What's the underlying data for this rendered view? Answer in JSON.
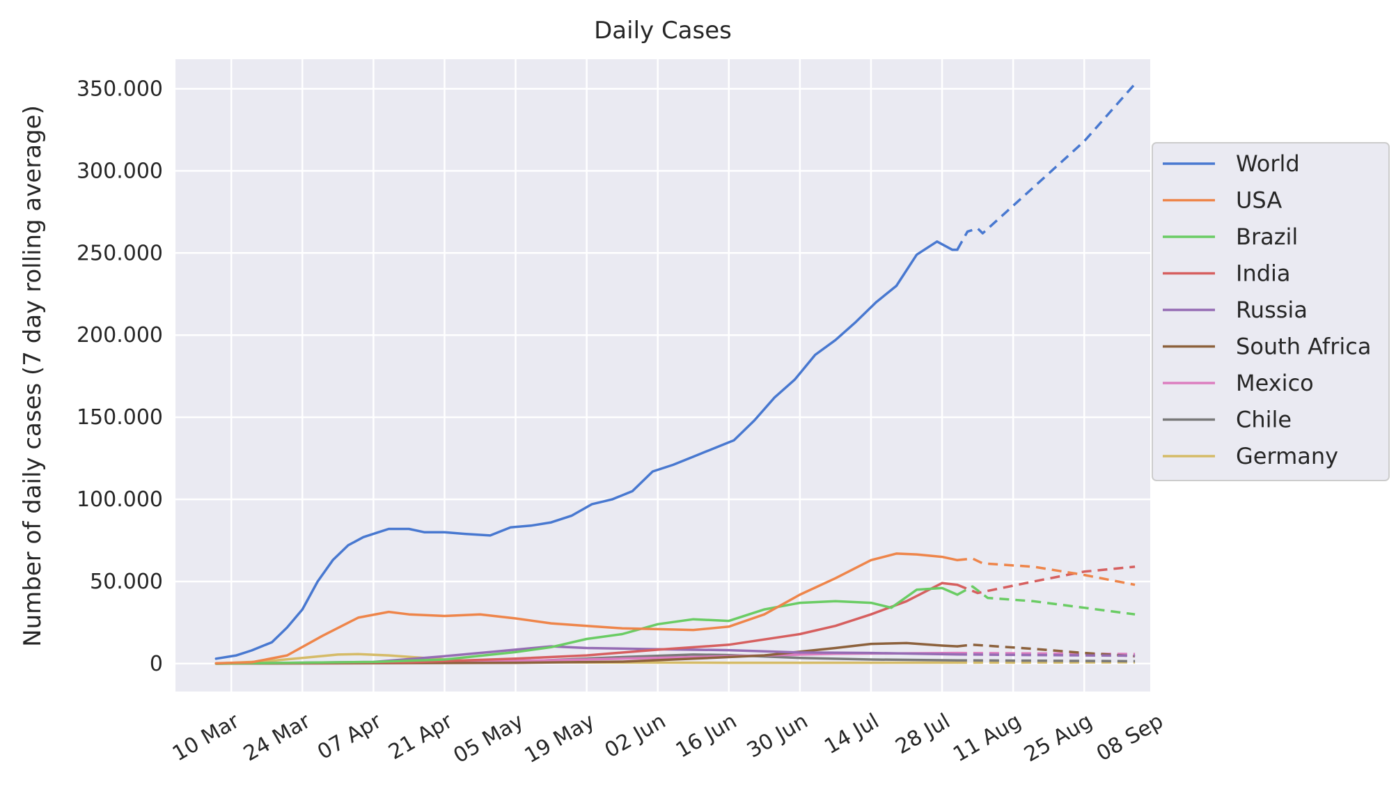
{
  "chart_data": {
    "type": "line",
    "title": "Daily Cases",
    "xlabel": "",
    "ylabel": "Number of daily cases (7 day rolling average)",
    "x_axis": {
      "type": "date",
      "range": [
        "2020-02-28",
        "2020-09-07"
      ],
      "ticks": [
        {
          "date": "2020-03-10",
          "label": "10 Mar"
        },
        {
          "date": "2020-03-24",
          "label": "24 Mar"
        },
        {
          "date": "2020-04-07",
          "label": "07 Apr"
        },
        {
          "date": "2020-04-21",
          "label": "21 Apr"
        },
        {
          "date": "2020-05-05",
          "label": "05 May"
        },
        {
          "date": "2020-05-19",
          "label": "19 May"
        },
        {
          "date": "2020-06-02",
          "label": "02 Jun"
        },
        {
          "date": "2020-06-16",
          "label": "16 Jun"
        },
        {
          "date": "2020-06-30",
          "label": "30 Jun"
        },
        {
          "date": "2020-07-14",
          "label": "14 Jul"
        },
        {
          "date": "2020-07-28",
          "label": "28 Jul"
        },
        {
          "date": "2020-08-11",
          "label": "11 Aug"
        },
        {
          "date": "2020-08-25",
          "label": "25 Aug"
        },
        {
          "date": "2020-09-08",
          "label": "08 Sep"
        }
      ]
    },
    "y_axis": {
      "range": [
        -17000,
        368000
      ],
      "ticks": [
        {
          "value": 0,
          "label": "0"
        },
        {
          "value": 50000,
          "label": "50.000"
        },
        {
          "value": 100000,
          "label": "100.000"
        },
        {
          "value": 150000,
          "label": "150.000"
        },
        {
          "value": 200000,
          "label": "200.000"
        },
        {
          "value": 250000,
          "label": "250.000"
        },
        {
          "value": 300000,
          "label": "300.000"
        },
        {
          "value": 350000,
          "label": "350.000"
        }
      ]
    },
    "grid": true,
    "legend_position": "right",
    "series": [
      {
        "name": "World",
        "color": "#4878d0",
        "actual": [
          [
            "2020-03-07",
            3000
          ],
          [
            "2020-03-11",
            5000
          ],
          [
            "2020-03-14",
            8000
          ],
          [
            "2020-03-18",
            13000
          ],
          [
            "2020-03-21",
            22000
          ],
          [
            "2020-03-24",
            33000
          ],
          [
            "2020-03-27",
            50000
          ],
          [
            "2020-03-30",
            63000
          ],
          [
            "2020-04-02",
            72000
          ],
          [
            "2020-04-05",
            77000
          ],
          [
            "2020-04-08",
            80000
          ],
          [
            "2020-04-10",
            82000
          ],
          [
            "2020-04-14",
            82000
          ],
          [
            "2020-04-17",
            80000
          ],
          [
            "2020-04-21",
            80000
          ],
          [
            "2020-04-25",
            79000
          ],
          [
            "2020-04-30",
            78000
          ],
          [
            "2020-05-04",
            83000
          ],
          [
            "2020-05-08",
            84000
          ],
          [
            "2020-05-12",
            86000
          ],
          [
            "2020-05-16",
            90000
          ],
          [
            "2020-05-20",
            97000
          ],
          [
            "2020-05-24",
            100000
          ],
          [
            "2020-05-28",
            105000
          ],
          [
            "2020-06-01",
            117000
          ],
          [
            "2020-06-05",
            121000
          ],
          [
            "2020-06-09",
            126000
          ],
          [
            "2020-06-13",
            131000
          ],
          [
            "2020-06-17",
            136000
          ],
          [
            "2020-06-21",
            148000
          ],
          [
            "2020-06-25",
            162000
          ],
          [
            "2020-06-29",
            173000
          ],
          [
            "2020-07-03",
            188000
          ],
          [
            "2020-07-07",
            197000
          ],
          [
            "2020-07-11",
            208000
          ],
          [
            "2020-07-15",
            220000
          ],
          [
            "2020-07-19",
            230000
          ],
          [
            "2020-07-23",
            249000
          ],
          [
            "2020-07-27",
            257000
          ],
          [
            "2020-07-30",
            252000
          ],
          [
            "2020-07-31",
            252000
          ]
        ],
        "forecast": [
          [
            "2020-07-31",
            252000
          ],
          [
            "2020-08-02",
            263000
          ],
          [
            "2020-08-04",
            265000
          ],
          [
            "2020-08-05",
            262000
          ],
          [
            "2020-08-15",
            290000
          ],
          [
            "2020-08-25",
            318000
          ],
          [
            "2020-09-04",
            353000
          ]
        ]
      },
      {
        "name": "USA",
        "color": "#ee854a",
        "actual": [
          [
            "2020-03-07",
            200
          ],
          [
            "2020-03-14",
            800
          ],
          [
            "2020-03-21",
            5000
          ],
          [
            "2020-03-28",
            17000
          ],
          [
            "2020-04-04",
            28000
          ],
          [
            "2020-04-10",
            31500
          ],
          [
            "2020-04-14",
            30000
          ],
          [
            "2020-04-21",
            29000
          ],
          [
            "2020-04-28",
            30000
          ],
          [
            "2020-05-05",
            27500
          ],
          [
            "2020-05-12",
            24500
          ],
          [
            "2020-05-19",
            23000
          ],
          [
            "2020-05-26",
            21500
          ],
          [
            "2020-06-02",
            21000
          ],
          [
            "2020-06-09",
            20500
          ],
          [
            "2020-06-16",
            22500
          ],
          [
            "2020-06-23",
            30000
          ],
          [
            "2020-06-30",
            42000
          ],
          [
            "2020-07-07",
            52000
          ],
          [
            "2020-07-14",
            63000
          ],
          [
            "2020-07-19",
            67000
          ],
          [
            "2020-07-23",
            66500
          ],
          [
            "2020-07-28",
            65000
          ],
          [
            "2020-07-31",
            63000
          ]
        ],
        "forecast": [
          [
            "2020-07-31",
            63000
          ],
          [
            "2020-08-03",
            64000
          ],
          [
            "2020-08-05",
            61000
          ],
          [
            "2020-08-15",
            59000
          ],
          [
            "2020-08-25",
            54000
          ],
          [
            "2020-09-04",
            48000
          ]
        ]
      },
      {
        "name": "Brazil",
        "color": "#6acc64",
        "actual": [
          [
            "2020-03-07",
            0
          ],
          [
            "2020-04-07",
            1000
          ],
          [
            "2020-04-21",
            2500
          ],
          [
            "2020-05-05",
            7000
          ],
          [
            "2020-05-12",
            10000
          ],
          [
            "2020-05-19",
            15000
          ],
          [
            "2020-05-26",
            18000
          ],
          [
            "2020-06-02",
            24000
          ],
          [
            "2020-06-09",
            27000
          ],
          [
            "2020-06-16",
            26000
          ],
          [
            "2020-06-23",
            33000
          ],
          [
            "2020-06-30",
            37000
          ],
          [
            "2020-07-07",
            38000
          ],
          [
            "2020-07-14",
            37000
          ],
          [
            "2020-07-18",
            34000
          ],
          [
            "2020-07-23",
            45000
          ],
          [
            "2020-07-28",
            46000
          ],
          [
            "2020-07-31",
            42000
          ]
        ],
        "forecast": [
          [
            "2020-07-31",
            42000
          ],
          [
            "2020-08-03",
            47000
          ],
          [
            "2020-08-06",
            40000
          ],
          [
            "2020-08-15",
            38000
          ],
          [
            "2020-08-25",
            34000
          ],
          [
            "2020-09-04",
            30000
          ]
        ]
      },
      {
        "name": "India",
        "color": "#d65f5f",
        "actual": [
          [
            "2020-03-07",
            0
          ],
          [
            "2020-04-14",
            800
          ],
          [
            "2020-05-05",
            3000
          ],
          [
            "2020-05-19",
            5000
          ],
          [
            "2020-06-02",
            8500
          ],
          [
            "2020-06-16",
            11500
          ],
          [
            "2020-06-30",
            18000
          ],
          [
            "2020-07-07",
            23000
          ],
          [
            "2020-07-14",
            30000
          ],
          [
            "2020-07-21",
            38000
          ],
          [
            "2020-07-28",
            49000
          ],
          [
            "2020-07-31",
            48000
          ]
        ],
        "forecast": [
          [
            "2020-07-31",
            48000
          ],
          [
            "2020-08-04",
            43000
          ],
          [
            "2020-08-15",
            50000
          ],
          [
            "2020-08-25",
            56000
          ],
          [
            "2020-09-04",
            59000
          ]
        ]
      },
      {
        "name": "Russia",
        "color": "#956cb4",
        "actual": [
          [
            "2020-03-07",
            0
          ],
          [
            "2020-04-07",
            1000
          ],
          [
            "2020-04-21",
            4500
          ],
          [
            "2020-05-05",
            8500
          ],
          [
            "2020-05-12",
            10500
          ],
          [
            "2020-05-19",
            9500
          ],
          [
            "2020-06-02",
            8800
          ],
          [
            "2020-06-16",
            8200
          ],
          [
            "2020-06-30",
            6800
          ],
          [
            "2020-07-14",
            6500
          ],
          [
            "2020-07-31",
            5600
          ]
        ],
        "forecast": [
          [
            "2020-07-31",
            5600
          ],
          [
            "2020-08-15",
            5200
          ],
          [
            "2020-09-04",
            4800
          ]
        ]
      },
      {
        "name": "South Africa",
        "color": "#8c613c",
        "actual": [
          [
            "2020-03-07",
            0
          ],
          [
            "2020-05-05",
            500
          ],
          [
            "2020-05-26",
            1200
          ],
          [
            "2020-06-09",
            3000
          ],
          [
            "2020-06-23",
            5000
          ],
          [
            "2020-07-07",
            9500
          ],
          [
            "2020-07-14",
            12000
          ],
          [
            "2020-07-21",
            12500
          ],
          [
            "2020-07-28",
            11000
          ],
          [
            "2020-07-31",
            10500
          ]
        ],
        "forecast": [
          [
            "2020-07-31",
            10500
          ],
          [
            "2020-08-03",
            11500
          ],
          [
            "2020-08-15",
            9000
          ],
          [
            "2020-08-25",
            6500
          ],
          [
            "2020-09-04",
            4500
          ]
        ]
      },
      {
        "name": "Mexico",
        "color": "#dc7ec0",
        "actual": [
          [
            "2020-03-07",
            0
          ],
          [
            "2020-04-21",
            800
          ],
          [
            "2020-05-19",
            2500
          ],
          [
            "2020-06-16",
            4500
          ],
          [
            "2020-07-07",
            6000
          ],
          [
            "2020-07-31",
            6500
          ]
        ],
        "forecast": [
          [
            "2020-07-31",
            6500
          ],
          [
            "2020-08-15",
            6200
          ],
          [
            "2020-09-04",
            5800
          ]
        ]
      },
      {
        "name": "Chile",
        "color": "#797979",
        "actual": [
          [
            "2020-03-07",
            0
          ],
          [
            "2020-05-05",
            1200
          ],
          [
            "2020-05-26",
            4000
          ],
          [
            "2020-06-09",
            5500
          ],
          [
            "2020-06-16",
            5200
          ],
          [
            "2020-06-30",
            3500
          ],
          [
            "2020-07-14",
            2500
          ],
          [
            "2020-07-31",
            2000
          ]
        ],
        "forecast": [
          [
            "2020-07-31",
            2000
          ],
          [
            "2020-08-15",
            1800
          ],
          [
            "2020-09-04",
            1500
          ]
        ]
      },
      {
        "name": "Germany",
        "color": "#d5bb67",
        "actual": [
          [
            "2020-03-07",
            100
          ],
          [
            "2020-03-17",
            1500
          ],
          [
            "2020-03-24",
            3500
          ],
          [
            "2020-03-31",
            5500
          ],
          [
            "2020-04-04",
            5800
          ],
          [
            "2020-04-10",
            5000
          ],
          [
            "2020-04-17",
            3500
          ],
          [
            "2020-04-24",
            2000
          ],
          [
            "2020-05-05",
            1000
          ],
          [
            "2020-05-19",
            700
          ],
          [
            "2020-06-16",
            500
          ],
          [
            "2020-06-30",
            450
          ],
          [
            "2020-07-31",
            600
          ]
        ],
        "forecast": [
          [
            "2020-07-31",
            600
          ],
          [
            "2020-08-15",
            700
          ],
          [
            "2020-09-04",
            800
          ]
        ]
      }
    ]
  }
}
